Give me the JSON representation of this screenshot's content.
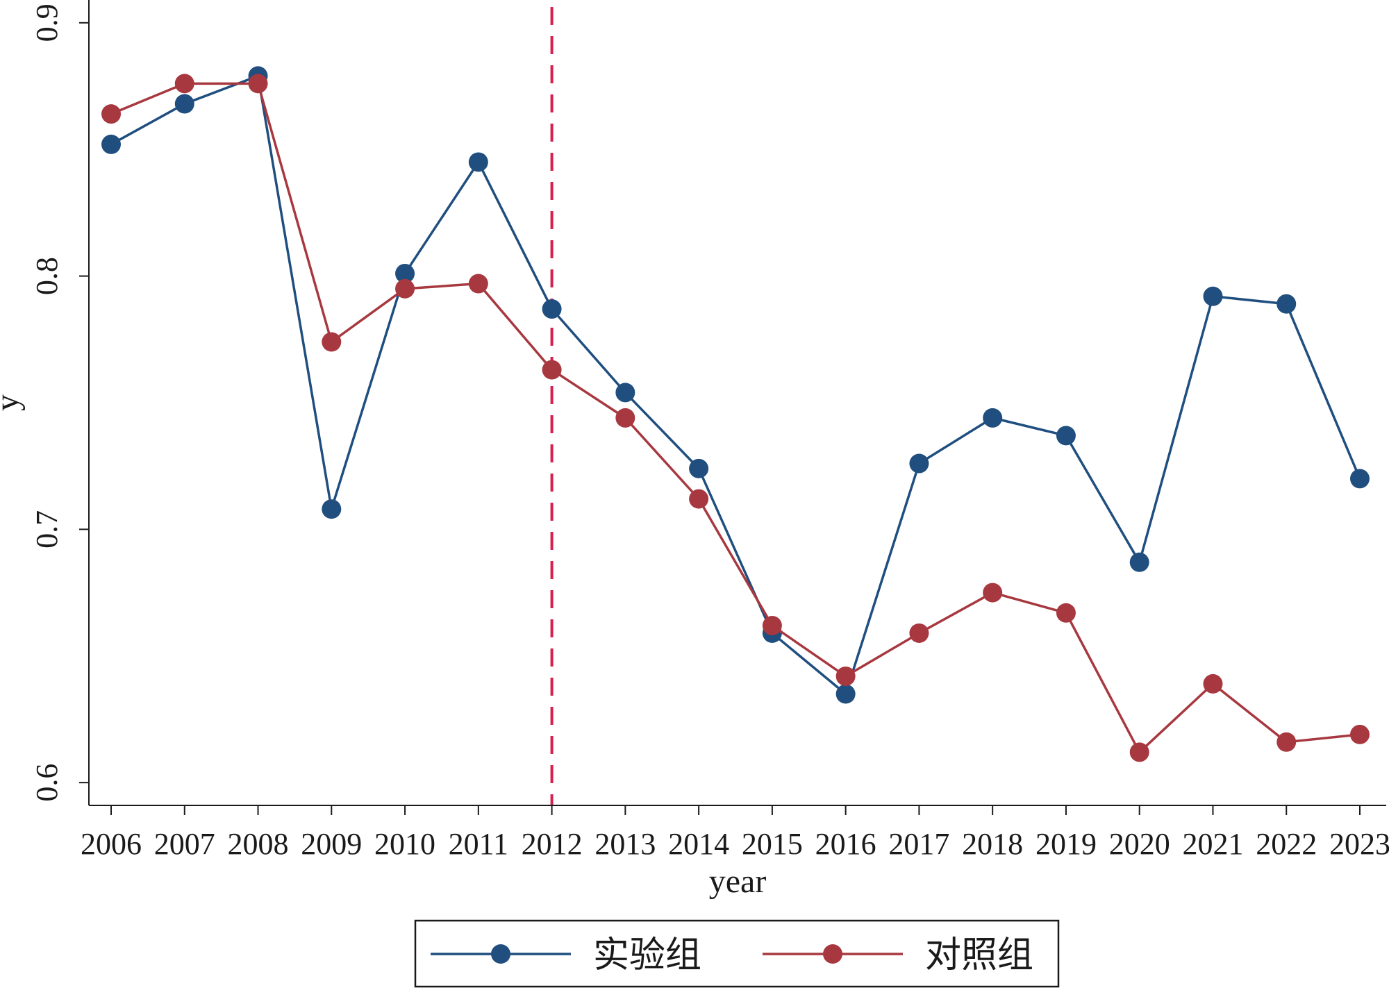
{
  "chart_data": {
    "type": "line",
    "title": "",
    "xlabel": "year",
    "ylabel": "y",
    "x": [
      2006,
      2007,
      2008,
      2009,
      2010,
      2011,
      2012,
      2013,
      2014,
      2015,
      2016,
      2017,
      2018,
      2019,
      2020,
      2021,
      2022,
      2023
    ],
    "x_tick_labels": [
      "2006",
      "2007",
      "2008",
      "2009",
      "2010",
      "2011",
      "2012",
      "2013",
      "2014",
      "2015",
      "2016",
      "2017",
      "2018",
      "2019",
      "2020",
      "2021",
      "2022",
      "2023"
    ],
    "y_tick_labels": [
      "0.6",
      "0.7",
      "0.8",
      "0.9"
    ],
    "yticks": [
      0.6,
      0.7,
      0.8,
      0.9
    ],
    "xlim": [
      2006,
      2023
    ],
    "ylim": [
      0.591,
      0.909
    ],
    "grid": false,
    "legend_position": "bottom",
    "reference_line": {
      "x": 2012,
      "style": "dashed",
      "color": "#d6204e"
    },
    "series": [
      {
        "name": "实验组",
        "color": "#1f4e7f",
        "values": [
          0.852,
          0.868,
          0.879,
          0.708,
          0.801,
          0.845,
          0.787,
          0.754,
          0.724,
          0.659,
          0.635,
          0.726,
          0.744,
          0.737,
          0.687,
          0.792,
          0.789,
          0.72
        ]
      },
      {
        "name": "对照组",
        "color": "#a8383f",
        "values": [
          0.864,
          0.876,
          0.876,
          0.774,
          0.795,
          0.797,
          0.763,
          0.744,
          0.712,
          0.662,
          0.642,
          0.659,
          0.675,
          0.667,
          0.612,
          0.639,
          0.616,
          0.619
        ]
      }
    ]
  }
}
